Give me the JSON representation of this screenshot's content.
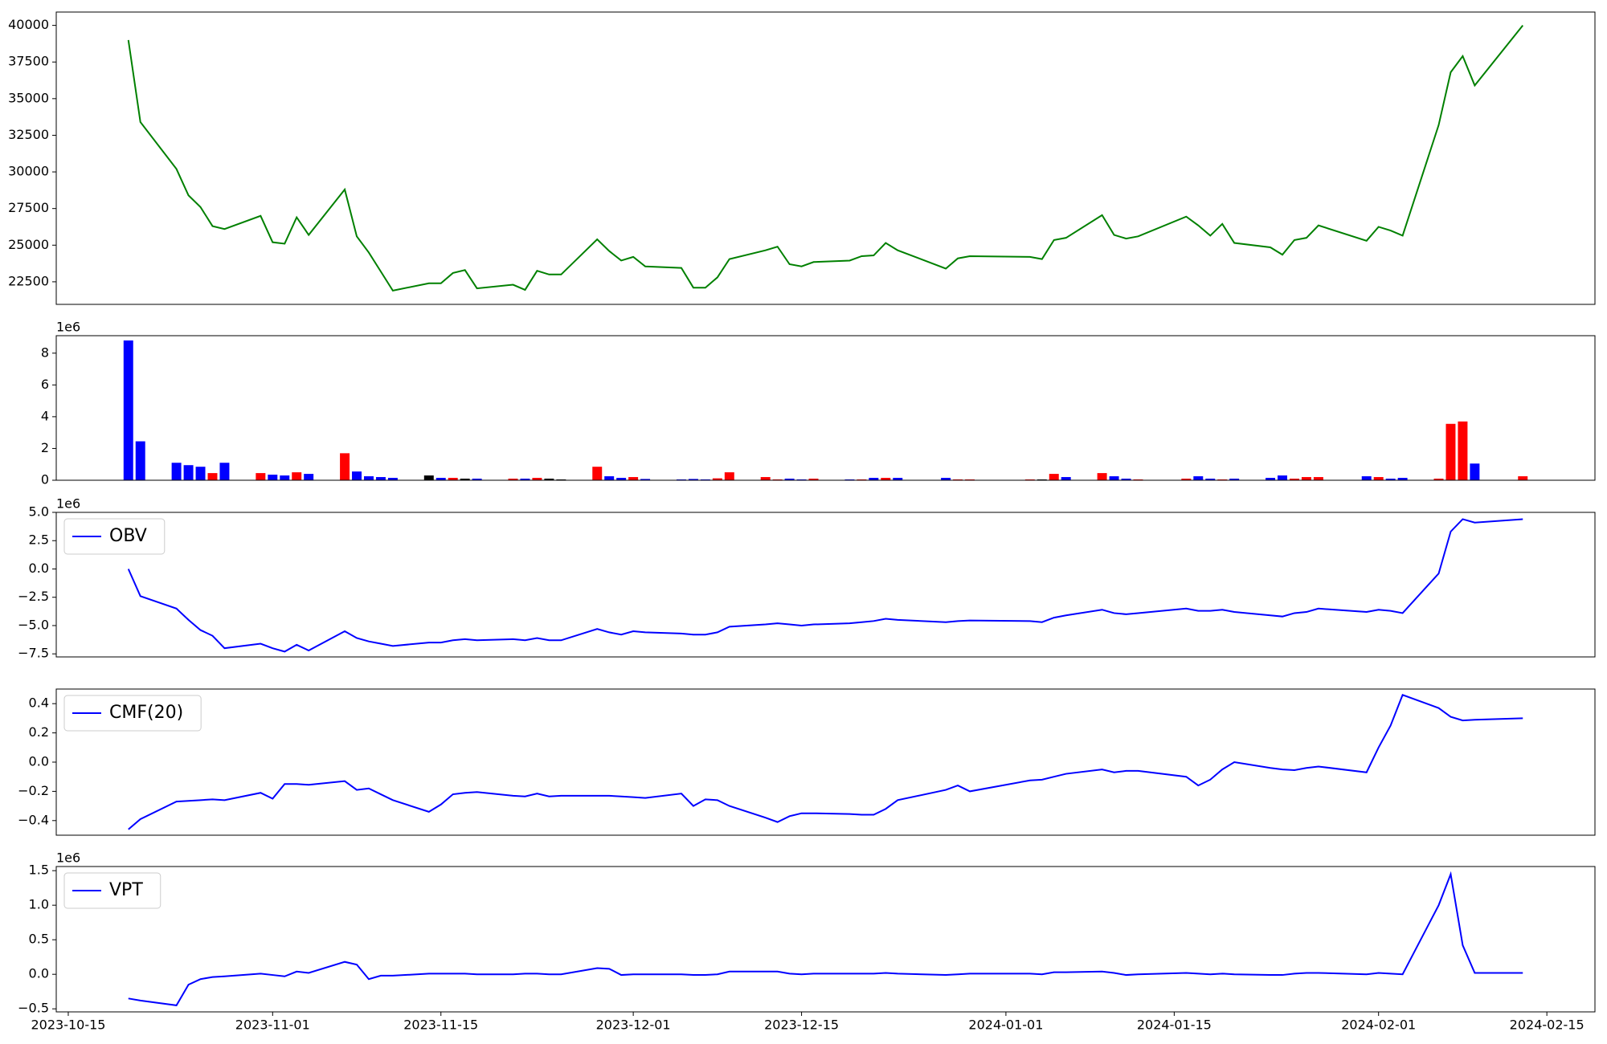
{
  "chart_data": [
    {
      "type": "line",
      "color": "green",
      "x": [
        "2023-10-20",
        "2023-10-21",
        "2023-10-24",
        "2023-10-25",
        "2023-10-26",
        "2023-10-27",
        "2023-10-28",
        "2023-10-31",
        "2023-11-01",
        "2023-11-02",
        "2023-11-03",
        "2023-11-04",
        "2023-11-07",
        "2023-11-08",
        "2023-11-09",
        "2023-11-10",
        "2023-11-11",
        "2023-11-14",
        "2023-11-15",
        "2023-11-16",
        "2023-11-17",
        "2023-11-18",
        "2023-11-21",
        "2023-11-22",
        "2023-11-23",
        "2023-11-24",
        "2023-11-25",
        "2023-11-28",
        "2023-11-29",
        "2023-11-30",
        "2023-12-01",
        "2023-12-02",
        "2023-12-05",
        "2023-12-06",
        "2023-12-07",
        "2023-12-08",
        "2023-12-09",
        "2023-12-12",
        "2023-12-13",
        "2023-12-14",
        "2023-12-15",
        "2023-12-16",
        "2023-12-19",
        "2023-12-20",
        "2023-12-21",
        "2023-12-22",
        "2023-12-23",
        "2023-12-27",
        "2023-12-28",
        "2023-12-29",
        "2024-01-03",
        "2024-01-04",
        "2024-01-05",
        "2024-01-06",
        "2024-01-09",
        "2024-01-10",
        "2024-01-11",
        "2024-01-12",
        "2024-01-16",
        "2024-01-17",
        "2024-01-18",
        "2024-01-19",
        "2024-01-20",
        "2024-01-23",
        "2024-01-24",
        "2024-01-25",
        "2024-01-26",
        "2024-01-27",
        "2024-01-31",
        "2024-02-01",
        "2024-02-02",
        "2024-02-03",
        "2024-02-06",
        "2024-02-07",
        "2024-02-08",
        "2024-02-09",
        "2024-02-13"
      ],
      "values": [
        39000,
        33400,
        30200,
        28400,
        27600,
        26300,
        26100,
        27000,
        25200,
        25100,
        26900,
        25700,
        28800,
        25600,
        24500,
        23200,
        21900,
        22400,
        22400,
        23100,
        23300,
        22050,
        22300,
        21950,
        23250,
        23000,
        23000,
        25400,
        24600,
        23950,
        24200,
        23550,
        23450,
        22100,
        22100,
        22800,
        24050,
        24650,
        24900,
        23700,
        23550,
        23850,
        23950,
        24250,
        24300,
        25150,
        24650,
        23400,
        24100,
        24250,
        24200,
        24050,
        25350,
        25500,
        27050,
        25700,
        25450,
        25600,
        26950,
        26350,
        25650,
        26450,
        25150,
        24850,
        24350,
        25350,
        25500,
        26350,
        25300,
        26250,
        26000,
        25650,
        33200,
        36800,
        37900,
        35900,
        40000
      ],
      "xlim": [
        "2023-10-14",
        "2024-02-19"
      ],
      "ylim": [
        20960,
        40910
      ],
      "yticks": [
        22500,
        25000,
        27500,
        30000,
        32500,
        35000,
        37500,
        40000
      ]
    },
    {
      "type": "bar",
      "offset_label": "1e6",
      "x": [
        "2023-10-20",
        "2023-10-21",
        "2023-10-24",
        "2023-10-25",
        "2023-10-26",
        "2023-10-27",
        "2023-10-28",
        "2023-10-31",
        "2023-11-01",
        "2023-11-02",
        "2023-11-03",
        "2023-11-04",
        "2023-11-07",
        "2023-11-08",
        "2023-11-09",
        "2023-11-10",
        "2023-11-11",
        "2023-11-14",
        "2023-11-15",
        "2023-11-16",
        "2023-11-17",
        "2023-11-18",
        "2023-11-21",
        "2023-11-22",
        "2023-11-23",
        "2023-11-24",
        "2023-11-25",
        "2023-11-28",
        "2023-11-29",
        "2023-11-30",
        "2023-12-01",
        "2023-12-02",
        "2023-12-05",
        "2023-12-06",
        "2023-12-07",
        "2023-12-08",
        "2023-12-09",
        "2023-12-12",
        "2023-12-13",
        "2023-12-14",
        "2023-12-15",
        "2023-12-16",
        "2023-12-19",
        "2023-12-20",
        "2023-12-21",
        "2023-12-22",
        "2023-12-23",
        "2023-12-27",
        "2023-12-28",
        "2023-12-29",
        "2024-01-03",
        "2024-01-04",
        "2024-01-05",
        "2024-01-06",
        "2024-01-09",
        "2024-01-10",
        "2024-01-11",
        "2024-01-12",
        "2024-01-16",
        "2024-01-17",
        "2024-01-18",
        "2024-01-19",
        "2024-01-20",
        "2024-01-23",
        "2024-01-24",
        "2024-01-25",
        "2024-01-26",
        "2024-01-27",
        "2024-01-31",
        "2024-02-01",
        "2024-02-02",
        "2024-02-03",
        "2024-02-06",
        "2024-02-07",
        "2024-02-08",
        "2024-02-09",
        "2024-02-13"
      ],
      "values": [
        8.8,
        2.45,
        1.1,
        0.95,
        0.85,
        0.45,
        1.1,
        0.45,
        0.35,
        0.3,
        0.5,
        0.4,
        1.7,
        0.55,
        0.25,
        0.2,
        0.15,
        0.3,
        0.15,
        0.15,
        0.1,
        0.1,
        0.1,
        0.1,
        0.15,
        0.1,
        0.05,
        0.85,
        0.25,
        0.15,
        0.2,
        0.08,
        0.05,
        0.08,
        0.05,
        0.12,
        0.5,
        0.2,
        0.05,
        0.1,
        0.05,
        0.1,
        0.05,
        0.05,
        0.15,
        0.15,
        0.15,
        0.15,
        0.05,
        0.05,
        0.05,
        0.05,
        0.4,
        0.2,
        0.45,
        0.25,
        0.1,
        0.05,
        0.1,
        0.25,
        0.1,
        0.05,
        0.1,
        0.15,
        0.3,
        0.1,
        0.2,
        0.2,
        0.25,
        0.2,
        0.1,
        0.15,
        0.1,
        3.55,
        3.7,
        1.05,
        0.25
      ],
      "colors": [
        "blue",
        "blue",
        "blue",
        "blue",
        "blue",
        "red",
        "blue",
        "red",
        "blue",
        "blue",
        "red",
        "blue",
        "red",
        "blue",
        "blue",
        "blue",
        "blue",
        "black",
        "blue",
        "red",
        "black",
        "blue",
        "red",
        "blue",
        "red",
        "black",
        "black",
        "red",
        "blue",
        "blue",
        "red",
        "blue",
        "blue",
        "blue",
        "blue",
        "red",
        "red",
        "red",
        "red",
        "blue",
        "blue",
        "red",
        "blue",
        "red",
        "blue",
        "red",
        "blue",
        "blue",
        "red",
        "red",
        "red",
        "black",
        "red",
        "blue",
        "red",
        "blue",
        "blue",
        "red",
        "red",
        "blue",
        "blue",
        "red",
        "blue",
        "blue",
        "blue",
        "red",
        "red",
        "red",
        "blue",
        "red",
        "blue",
        "blue",
        "red",
        "red",
        "red",
        "blue",
        "red"
      ],
      "xlim": [
        "2023-10-14",
        "2024-02-19"
      ],
      "ylim": [
        0,
        9.1
      ],
      "yticks": [
        0,
        2,
        4,
        6,
        8
      ]
    },
    {
      "type": "line",
      "offset_label": "1e6",
      "legend": "upper left",
      "x": [
        "2023-10-20",
        "2023-10-21",
        "2023-10-24",
        "2023-10-25",
        "2023-10-26",
        "2023-10-27",
        "2023-10-28",
        "2023-10-31",
        "2023-11-01",
        "2023-11-02",
        "2023-11-03",
        "2023-11-04",
        "2023-11-07",
        "2023-11-08",
        "2023-11-09",
        "2023-11-10",
        "2023-11-11",
        "2023-11-14",
        "2023-11-15",
        "2023-11-16",
        "2023-11-17",
        "2023-11-18",
        "2023-11-21",
        "2023-11-22",
        "2023-11-23",
        "2023-11-24",
        "2023-11-25",
        "2023-11-28",
        "2023-11-29",
        "2023-11-30",
        "2023-12-01",
        "2023-12-02",
        "2023-12-05",
        "2023-12-06",
        "2023-12-07",
        "2023-12-08",
        "2023-12-09",
        "2023-12-12",
        "2023-12-13",
        "2023-12-14",
        "2023-12-15",
        "2023-12-16",
        "2023-12-19",
        "2023-12-20",
        "2023-12-21",
        "2023-12-22",
        "2023-12-23",
        "2023-12-27",
        "2023-12-28",
        "2023-12-29",
        "2024-01-03",
        "2024-01-04",
        "2024-01-05",
        "2024-01-06",
        "2024-01-09",
        "2024-01-10",
        "2024-01-11",
        "2024-01-12",
        "2024-01-16",
        "2024-01-17",
        "2024-01-18",
        "2024-01-19",
        "2024-01-20",
        "2024-01-23",
        "2024-01-24",
        "2024-01-25",
        "2024-01-26",
        "2024-01-27",
        "2024-01-31",
        "2024-02-01",
        "2024-02-02",
        "2024-02-03",
        "2024-02-06",
        "2024-02-07",
        "2024-02-08",
        "2024-02-09",
        "2024-02-13"
      ],
      "series": [
        {
          "name": "OBV",
          "color": "blue",
          "values": [
            0.0,
            -2.4,
            -3.5,
            -4.5,
            -5.4,
            -5.9,
            -7.0,
            -6.6,
            -7.0,
            -7.3,
            -6.7,
            -7.2,
            -5.5,
            -6.1,
            -6.4,
            -6.6,
            -6.8,
            -6.5,
            -6.5,
            -6.3,
            -6.2,
            -6.3,
            -6.2,
            -6.3,
            -6.1,
            -6.3,
            -6.3,
            -5.3,
            -5.6,
            -5.8,
            -5.5,
            -5.6,
            -5.7,
            -5.8,
            -5.8,
            -5.6,
            -5.1,
            -4.9,
            -4.8,
            -4.9,
            -5.0,
            -4.9,
            -4.8,
            -4.7,
            -4.6,
            -4.4,
            -4.5,
            -4.7,
            -4.6,
            -4.55,
            -4.6,
            -4.7,
            -4.3,
            -4.1,
            -3.6,
            -3.9,
            -4.0,
            -3.9,
            -3.5,
            -3.7,
            -3.7,
            -3.6,
            -3.8,
            -4.1,
            -4.2,
            -3.9,
            -3.8,
            -3.5,
            -3.8,
            -3.6,
            -3.7,
            -3.9,
            -0.4,
            3.3,
            4.4,
            4.1,
            4.4
          ]
        }
      ],
      "xlim": [
        "2023-10-14",
        "2024-02-19"
      ],
      "ylim": [
        -7.77,
        5.0
      ],
      "yticks": [
        {
          "value": -7.5,
          "label": "−7.5"
        },
        {
          "value": -5,
          "label": "−5.0"
        },
        {
          "value": -2.5,
          "label": "−2.5"
        },
        {
          "value": 0,
          "label": "0.0"
        },
        2.5,
        {
          "value": 5,
          "label": "5.0"
        }
      ]
    },
    {
      "type": "line",
      "legend": "upper left",
      "x": [
        "2023-10-20",
        "2023-10-21",
        "2023-10-24",
        "2023-10-25",
        "2023-10-26",
        "2023-10-27",
        "2023-10-28",
        "2023-10-31",
        "2023-11-01",
        "2023-11-02",
        "2023-11-03",
        "2023-11-04",
        "2023-11-07",
        "2023-11-08",
        "2023-11-09",
        "2023-11-10",
        "2023-11-11",
        "2023-11-14",
        "2023-11-15",
        "2023-11-16",
        "2023-11-17",
        "2023-11-18",
        "2023-11-21",
        "2023-11-22",
        "2023-11-23",
        "2023-11-24",
        "2023-11-25",
        "2023-11-28",
        "2023-11-29",
        "2023-11-30",
        "2023-12-01",
        "2023-12-02",
        "2023-12-05",
        "2023-12-06",
        "2023-12-07",
        "2023-12-08",
        "2023-12-09",
        "2023-12-12",
        "2023-12-13",
        "2023-12-14",
        "2023-12-15",
        "2023-12-16",
        "2023-12-19",
        "2023-12-20",
        "2023-12-21",
        "2023-12-22",
        "2023-12-23",
        "2023-12-27",
        "2023-12-28",
        "2023-12-29",
        "2024-01-03",
        "2024-01-04",
        "2024-01-05",
        "2024-01-06",
        "2024-01-09",
        "2024-01-10",
        "2024-01-11",
        "2024-01-12",
        "2024-01-16",
        "2024-01-17",
        "2024-01-18",
        "2024-01-19",
        "2024-01-20",
        "2024-01-23",
        "2024-01-24",
        "2024-01-25",
        "2024-01-26",
        "2024-01-27",
        "2024-01-31",
        "2024-02-01",
        "2024-02-02",
        "2024-02-03",
        "2024-02-06",
        "2024-02-07",
        "2024-02-08",
        "2024-02-09",
        "2024-02-13"
      ],
      "series": [
        {
          "name": "CMF(20)",
          "color": "blue",
          "values": [
            -0.46,
            -0.39,
            -0.27,
            -0.265,
            -0.26,
            -0.255,
            -0.26,
            -0.21,
            -0.25,
            -0.15,
            -0.15,
            -0.155,
            -0.13,
            -0.19,
            -0.18,
            -0.22,
            -0.26,
            -0.34,
            -0.29,
            -0.22,
            -0.21,
            -0.205,
            -0.23,
            -0.235,
            -0.215,
            -0.235,
            -0.23,
            -0.23,
            -0.23,
            -0.235,
            -0.24,
            -0.245,
            -0.215,
            -0.3,
            -0.255,
            -0.26,
            -0.3,
            -0.38,
            -0.41,
            -0.37,
            -0.35,
            -0.35,
            -0.355,
            -0.36,
            -0.36,
            -0.32,
            -0.26,
            -0.19,
            -0.16,
            -0.2,
            -0.125,
            -0.12,
            -0.1,
            -0.08,
            -0.05,
            -0.07,
            -0.06,
            -0.06,
            -0.1,
            -0.16,
            -0.12,
            -0.05,
            0.0,
            -0.04,
            -0.05,
            -0.055,
            -0.04,
            -0.03,
            -0.07,
            0.1,
            0.25,
            0.46,
            0.37,
            0.31,
            0.285,
            0.29,
            0.3
          ]
        }
      ],
      "xlim": [
        "2023-10-14",
        "2024-02-19"
      ],
      "ylim": [
        -0.5,
        0.5
      ],
      "yticks": [
        {
          "value": -0.4,
          "label": "−0.4"
        },
        {
          "value": -0.2,
          "label": "−0.2"
        },
        {
          "value": 0,
          "label": "0.0"
        },
        0.2,
        0.4
      ]
    },
    {
      "type": "line",
      "offset_label": "1e6",
      "legend": "upper left",
      "x": [
        "2023-10-20",
        "2023-10-21",
        "2023-10-24",
        "2023-10-25",
        "2023-10-26",
        "2023-10-27",
        "2023-10-28",
        "2023-10-31",
        "2023-11-01",
        "2023-11-02",
        "2023-11-03",
        "2023-11-04",
        "2023-11-07",
        "2023-11-08",
        "2023-11-09",
        "2023-11-10",
        "2023-11-11",
        "2023-11-14",
        "2023-11-15",
        "2023-11-16",
        "2023-11-17",
        "2023-11-18",
        "2023-11-21",
        "2023-11-22",
        "2023-11-23",
        "2023-11-24",
        "2023-11-25",
        "2023-11-28",
        "2023-11-29",
        "2023-11-30",
        "2023-12-01",
        "2023-12-02",
        "2023-12-05",
        "2023-12-06",
        "2023-12-07",
        "2023-12-08",
        "2023-12-09",
        "2023-12-12",
        "2023-12-13",
        "2023-12-14",
        "2023-12-15",
        "2023-12-16",
        "2023-12-19",
        "2023-12-20",
        "2023-12-21",
        "2023-12-22",
        "2023-12-23",
        "2023-12-27",
        "2023-12-28",
        "2023-12-29",
        "2024-01-03",
        "2024-01-04",
        "2024-01-05",
        "2024-01-06",
        "2024-01-09",
        "2024-01-10",
        "2024-01-11",
        "2024-01-12",
        "2024-01-16",
        "2024-01-17",
        "2024-01-18",
        "2024-01-19",
        "2024-01-20",
        "2024-01-23",
        "2024-01-24",
        "2024-01-25",
        "2024-01-26",
        "2024-01-27",
        "2024-01-31",
        "2024-02-01",
        "2024-02-02",
        "2024-02-03",
        "2024-02-06",
        "2024-02-07",
        "2024-02-08",
        "2024-02-09",
        "2024-02-13"
      ],
      "series": [
        {
          "name": "VPT",
          "color": "blue",
          "values": [
            -0.35,
            -0.38,
            -0.45,
            -0.15,
            -0.07,
            -0.04,
            -0.03,
            0.01,
            -0.01,
            -0.03,
            0.04,
            0.02,
            0.18,
            0.14,
            -0.07,
            -0.02,
            -0.02,
            0.01,
            0.01,
            0.01,
            0.01,
            0.0,
            0.0,
            0.01,
            0.01,
            0.0,
            0.0,
            0.09,
            0.08,
            -0.01,
            0.0,
            0.0,
            0.0,
            -0.01,
            -0.01,
            0.0,
            0.04,
            0.04,
            0.04,
            0.01,
            0.0,
            0.01,
            0.01,
            0.01,
            0.01,
            0.02,
            0.01,
            -0.01,
            0.0,
            0.01,
            0.01,
            0.0,
            0.03,
            0.03,
            0.04,
            0.02,
            -0.01,
            0.0,
            0.02,
            0.01,
            0.0,
            0.01,
            0.0,
            -0.01,
            -0.01,
            0.01,
            0.02,
            0.02,
            0.0,
            0.02,
            0.01,
            0.0,
            1.0,
            1.45,
            0.42,
            0.02,
            0.02
          ]
        }
      ],
      "xlim": [
        "2023-10-14",
        "2024-02-19"
      ],
      "ylim": [
        -0.544,
        1.56
      ],
      "yticks": [
        {
          "value": -0.5,
          "label": "−0.5"
        },
        {
          "value": 0,
          "label": "0.0"
        },
        0.5,
        {
          "value": 1,
          "label": "1.0"
        },
        1.5
      ],
      "xticks": [
        "2023-10-15",
        "2023-11-01",
        "2023-11-15",
        "2023-12-01",
        "2023-12-15",
        "2024-01-01",
        "2024-01-15",
        "2024-02-01",
        "2024-02-15"
      ]
    }
  ]
}
